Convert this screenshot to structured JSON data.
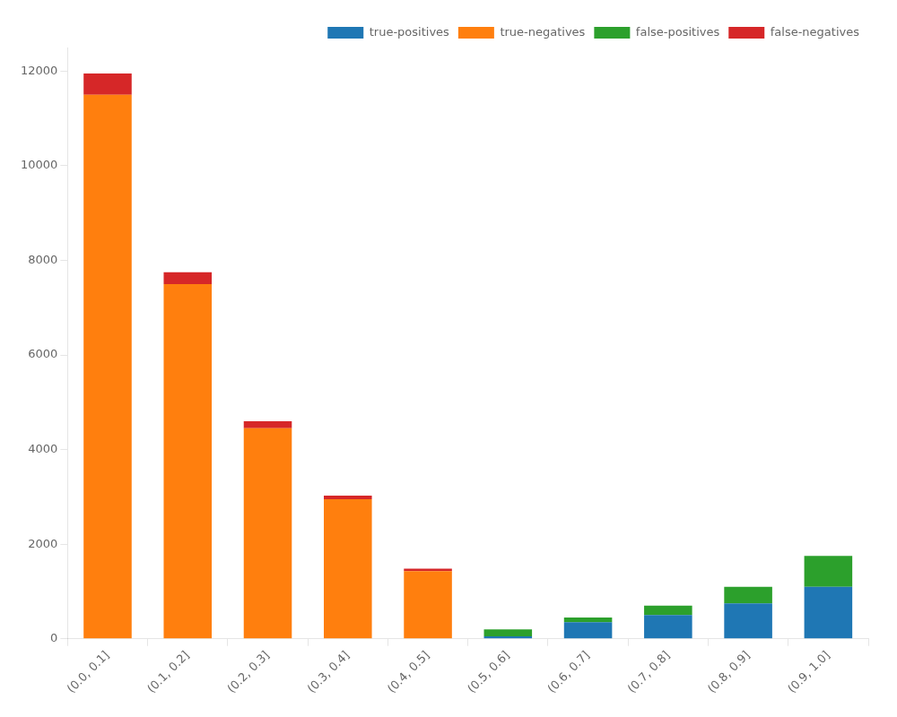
{
  "chart_data": {
    "type": "bar",
    "stacked": true,
    "categories": [
      "(0.0, 0.1]",
      "(0.1, 0.2]",
      "(0.2, 0.3]",
      "(0.3, 0.4]",
      "(0.4, 0.5]",
      "(0.5, 0.6]",
      "(0.6, 0.7]",
      "(0.7, 0.8]",
      "(0.8, 0.9]",
      "(0.9, 1.0]"
    ],
    "series": [
      {
        "name": "true-positives",
        "color": "#1f77b4",
        "values": [
          0,
          0,
          0,
          0,
          0,
          50,
          350,
          500,
          750,
          1100
        ]
      },
      {
        "name": "true-negatives",
        "color": "#ff7f0e",
        "values": [
          11500,
          7500,
          4450,
          2950,
          1430,
          0,
          0,
          0,
          0,
          0
        ]
      },
      {
        "name": "false-positives",
        "color": "#2ca02c",
        "values": [
          0,
          0,
          0,
          0,
          0,
          150,
          100,
          200,
          350,
          650
        ]
      },
      {
        "name": "false-negatives",
        "color": "#d62728",
        "values": [
          450,
          250,
          150,
          75,
          50,
          0,
          0,
          0,
          0,
          0
        ]
      }
    ],
    "ylim": [
      0,
      12500
    ],
    "yticks": [
      0,
      2000,
      4000,
      6000,
      8000,
      10000,
      12000
    ],
    "grid": false,
    "legend": "upper right"
  }
}
